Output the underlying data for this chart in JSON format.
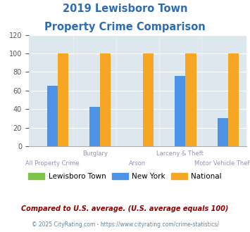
{
  "title_line1": "2019 Lewisboro Town",
  "title_line2": "Property Crime Comparison",
  "categories": [
    "All Property Crime",
    "Burglary",
    "Arson",
    "Larceny & Theft",
    "Motor Vehicle Theft"
  ],
  "lewisboro_values": [
    0,
    0,
    0,
    0,
    0
  ],
  "newyork_values": [
    65,
    42,
    0,
    76,
    30
  ],
  "national_values": [
    100,
    100,
    100,
    100,
    100
  ],
  "bar_colors": {
    "lewisboro": "#7dc34a",
    "newyork": "#4d94e8",
    "national": "#f5a623"
  },
  "ylim": [
    0,
    120
  ],
  "yticks": [
    0,
    20,
    40,
    60,
    80,
    100,
    120
  ],
  "legend_labels": [
    "Lewisboro Town",
    "New York",
    "National"
  ],
  "footer_text1": "Compared to U.S. average. (U.S. average equals 100)",
  "footer_text2": "© 2025 CityRating.com - https://www.cityrating.com/crime-statistics/",
  "title_color": "#2e6db4",
  "footer1_color": "#8b0000",
  "footer2_color": "#5588aa",
  "axis_label_color": "#9b8fb0",
  "plot_bg": "#dde8ee"
}
